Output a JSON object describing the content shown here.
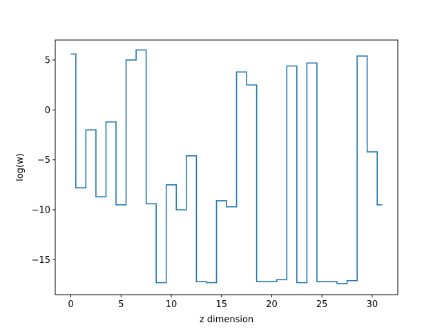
{
  "chart_data": {
    "type": "line",
    "drawstyle": "steps-mid",
    "title": "",
    "xlabel": "z dimension",
    "ylabel": "log(w)",
    "xlim": [
      -1.55,
      32.55
    ],
    "ylim": [
      -18.5,
      7.0
    ],
    "xticks": [
      0,
      5,
      10,
      15,
      20,
      25,
      30
    ],
    "xtick_labels": [
      "0",
      "5",
      "10",
      "15",
      "20",
      "25",
      "30"
    ],
    "yticks": [
      -15,
      -10,
      -5,
      0,
      5
    ],
    "ytick_labels": [
      "−15",
      "−10",
      "−5",
      "0",
      "5"
    ],
    "grid": false,
    "legend": "none",
    "series": [
      {
        "color": "#1f77b4",
        "x": [
          0,
          1,
          2,
          3,
          4,
          5,
          6,
          7,
          8,
          9,
          10,
          11,
          12,
          13,
          14,
          15,
          16,
          17,
          18,
          19,
          20,
          21,
          22,
          23,
          24,
          25,
          26,
          27,
          28,
          29,
          30,
          31
        ],
        "y": [
          5.6,
          -7.8,
          -2.0,
          -8.7,
          -1.2,
          -9.5,
          5.0,
          6.0,
          -9.4,
          -17.3,
          -7.5,
          -10.0,
          -4.6,
          -17.2,
          -17.3,
          -9.1,
          -9.7,
          3.8,
          2.5,
          -17.2,
          -17.2,
          -17.0,
          4.4,
          -17.3,
          4.7,
          -17.2,
          -17.2,
          -17.4,
          -17.1,
          5.4,
          -4.2,
          -9.5
        ]
      }
    ]
  }
}
